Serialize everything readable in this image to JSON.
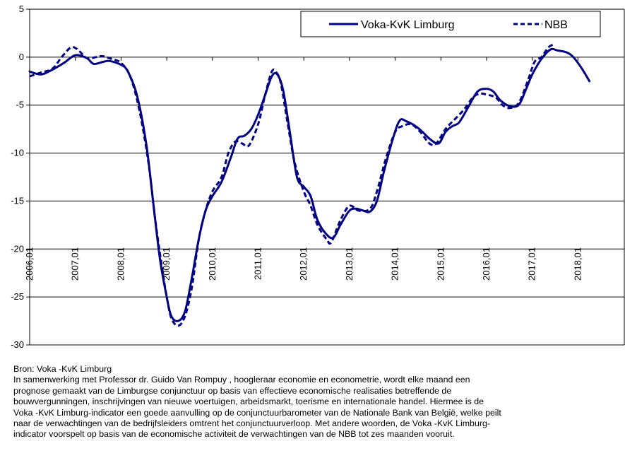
{
  "chart_data": {
    "type": "line",
    "xlabel": "",
    "ylabel": "",
    "ylim": [
      -30,
      5
    ],
    "y_ticks": [
      "5",
      "0",
      "-5",
      "-10",
      "-15",
      "-20",
      "-25",
      "-30"
    ],
    "x_tick_labels": [
      "2006,01",
      "2007,01",
      "2008,01",
      "2009,01",
      "2010,01",
      "2011,01",
      "2012,01",
      "2013,01",
      "2014,01",
      "2015,01",
      "2016,01",
      "2017,01",
      "2018,01"
    ],
    "grid": "horizontal",
    "legend_position": "top-right",
    "series": [
      {
        "name": "Voka-KvK Limburg",
        "style": "solid",
        "color": "#000080",
        "points": [
          [
            2006.0,
            -1.5
          ],
          [
            2006.25,
            -1.8
          ],
          [
            2006.5,
            -1.3
          ],
          [
            2006.75,
            -0.6
          ],
          [
            2007.0,
            0.2
          ],
          [
            2007.25,
            -0.1
          ],
          [
            2007.4,
            -0.7
          ],
          [
            2007.6,
            -0.5
          ],
          [
            2007.75,
            -0.4
          ],
          [
            2008.0,
            -0.8
          ],
          [
            2008.15,
            -1.5
          ],
          [
            2008.35,
            -4.0
          ],
          [
            2008.55,
            -9.0
          ],
          [
            2008.7,
            -15.0
          ],
          [
            2008.85,
            -21.0
          ],
          [
            2009.0,
            -25.0
          ],
          [
            2009.1,
            -27.0
          ],
          [
            2009.25,
            -27.5
          ],
          [
            2009.4,
            -26.5
          ],
          [
            2009.55,
            -23.0
          ],
          [
            2009.7,
            -19.0
          ],
          [
            2009.85,
            -16.0
          ],
          [
            2010.0,
            -14.5
          ],
          [
            2010.2,
            -13.0
          ],
          [
            2010.4,
            -10.5
          ],
          [
            2010.55,
            -8.5
          ],
          [
            2010.7,
            -8.2
          ],
          [
            2010.85,
            -7.5
          ],
          [
            2011.0,
            -6.0
          ],
          [
            2011.15,
            -4.0
          ],
          [
            2011.3,
            -2.0
          ],
          [
            2011.42,
            -1.8
          ],
          [
            2011.55,
            -3.5
          ],
          [
            2011.7,
            -8.0
          ],
          [
            2011.85,
            -12.5
          ],
          [
            2012.0,
            -13.5
          ],
          [
            2012.15,
            -14.5
          ],
          [
            2012.3,
            -17.0
          ],
          [
            2012.5,
            -18.5
          ],
          [
            2012.65,
            -18.8
          ],
          [
            2012.8,
            -17.5
          ],
          [
            2013.0,
            -16.0
          ],
          [
            2013.15,
            -15.8
          ],
          [
            2013.3,
            -16.0
          ],
          [
            2013.45,
            -16.1
          ],
          [
            2013.6,
            -15.0
          ],
          [
            2013.75,
            -12.0
          ],
          [
            2013.95,
            -8.5
          ],
          [
            2014.1,
            -6.6
          ],
          [
            2014.25,
            -6.7
          ],
          [
            2014.45,
            -7.2
          ],
          [
            2014.6,
            -7.8
          ],
          [
            2014.75,
            -8.5
          ],
          [
            2014.95,
            -9.0
          ],
          [
            2015.1,
            -7.8
          ],
          [
            2015.25,
            -7.2
          ],
          [
            2015.4,
            -6.8
          ],
          [
            2015.6,
            -5.2
          ],
          [
            2015.8,
            -3.6
          ],
          [
            2016.0,
            -3.3
          ],
          [
            2016.15,
            -3.6
          ],
          [
            2016.3,
            -4.5
          ],
          [
            2016.5,
            -5.1
          ],
          [
            2016.7,
            -5.0
          ],
          [
            2016.85,
            -3.5
          ],
          [
            2017.0,
            -1.8
          ],
          [
            2017.2,
            -0.2
          ],
          [
            2017.4,
            0.8
          ],
          [
            2017.55,
            0.7
          ],
          [
            2017.75,
            0.5
          ],
          [
            2017.9,
            0.0
          ],
          [
            2018.1,
            -1.3
          ],
          [
            2018.25,
            -2.5
          ]
        ]
      },
      {
        "name": "NBB",
        "style": "dashed",
        "color": "#000080",
        "points": [
          [
            2006.0,
            -2.0
          ],
          [
            2006.25,
            -1.6
          ],
          [
            2006.5,
            -1.2
          ],
          [
            2006.7,
            0.0
          ],
          [
            2006.9,
            1.0
          ],
          [
            2007.05,
            0.8
          ],
          [
            2007.25,
            -0.1
          ],
          [
            2007.45,
            0.0
          ],
          [
            2007.6,
            0.1
          ],
          [
            2007.8,
            -0.2
          ],
          [
            2008.0,
            -0.6
          ],
          [
            2008.2,
            -2.0
          ],
          [
            2008.4,
            -5.5
          ],
          [
            2008.6,
            -11.0
          ],
          [
            2008.75,
            -17.0
          ],
          [
            2008.9,
            -22.0
          ],
          [
            2009.0,
            -25.0
          ],
          [
            2009.1,
            -27.2
          ],
          [
            2009.25,
            -28.0
          ],
          [
            2009.4,
            -27.0
          ],
          [
            2009.55,
            -24.0
          ],
          [
            2009.7,
            -19.0
          ],
          [
            2009.85,
            -16.0
          ],
          [
            2010.0,
            -14.0
          ],
          [
            2010.2,
            -12.5
          ],
          [
            2010.35,
            -10.0
          ],
          [
            2010.5,
            -8.8
          ],
          [
            2010.65,
            -9.0
          ],
          [
            2010.8,
            -9.2
          ],
          [
            2011.0,
            -7.0
          ],
          [
            2011.15,
            -4.0
          ],
          [
            2011.3,
            -1.5
          ],
          [
            2011.4,
            -1.6
          ],
          [
            2011.5,
            -2.8
          ],
          [
            2011.65,
            -7.0
          ],
          [
            2011.8,
            -11.0
          ],
          [
            2012.0,
            -14.0
          ],
          [
            2012.15,
            -15.5
          ],
          [
            2012.3,
            -17.5
          ],
          [
            2012.5,
            -19.0
          ],
          [
            2012.6,
            -19.3
          ],
          [
            2012.8,
            -17.0
          ],
          [
            2013.0,
            -15.5
          ],
          [
            2013.2,
            -16.0
          ],
          [
            2013.45,
            -15.8
          ],
          [
            2013.6,
            -14.0
          ],
          [
            2013.8,
            -10.5
          ],
          [
            2014.0,
            -7.8
          ],
          [
            2014.15,
            -7.2
          ],
          [
            2014.35,
            -7.0
          ],
          [
            2014.55,
            -7.8
          ],
          [
            2014.75,
            -9.0
          ],
          [
            2014.9,
            -9.0
          ],
          [
            2015.1,
            -7.5
          ],
          [
            2015.3,
            -6.5
          ],
          [
            2015.5,
            -5.5
          ],
          [
            2015.7,
            -4.2
          ],
          [
            2015.85,
            -3.8
          ],
          [
            2016.0,
            -3.9
          ],
          [
            2016.2,
            -4.2
          ],
          [
            2016.35,
            -5.0
          ],
          [
            2016.5,
            -5.3
          ],
          [
            2016.7,
            -4.8
          ],
          [
            2016.9,
            -2.5
          ],
          [
            2017.05,
            -0.5
          ],
          [
            2017.2,
            0.0
          ],
          [
            2017.35,
            1.0
          ],
          [
            2017.45,
            1.3
          ]
        ]
      }
    ]
  },
  "legend": {
    "series1_label": "Voka-KvK Limburg",
    "series2_label": "NBB"
  },
  "source_note": {
    "lines": [
      "Bron: Voka -KvK Limburg",
      "In samenwerking met Professor dr. Guido Van Rompuy , hoogleraar economie en  econometrie,  wordt elke maand een",
      "prognose gemaakt van de Limburgse conjunctuur op basis van  effectieve economische realisaties betreffende de",
      "bouwvergunningen, inschrijvingen van nieuwe voertuigen,  arbeidsmarkt, toerisme en internationale handel. Hiermee is de",
      "Voka -KvK Limburg-indicator een goede aanvulling op de conjunctuurbarometer van de Nationale Bank van België, welke peilt",
      "naar de verwachtingen van de bedrijfsleiders omtrent het conjunctuurverloop. Met andere woorden, de Voka -KvK Limburg-",
      "indicator voorspelt op basis van de economische activiteit de verwachtingen van de NBB tot zes maanden vooruit."
    ]
  }
}
